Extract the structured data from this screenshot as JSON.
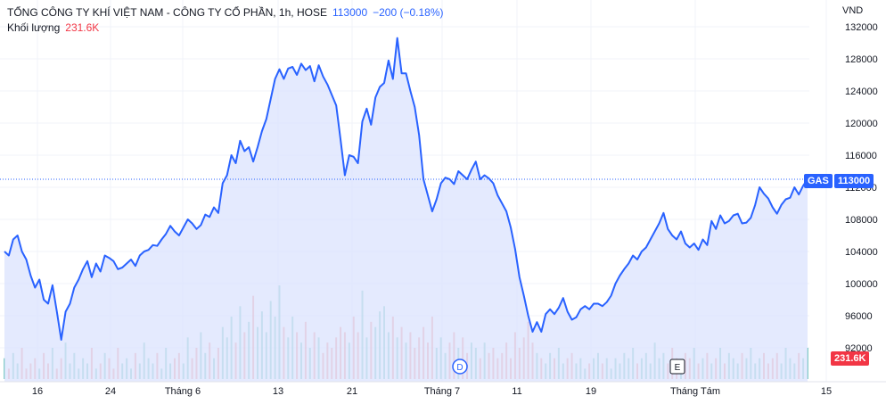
{
  "legend": {
    "symbol_title": "TỔNG CÔNG TY KHÍ VIỆT NAM - CÔNG TY CỔ PHẦN, 1h, HOSE",
    "last_price": "113000",
    "change": "−200 (−0.18%)",
    "volume_label": "Khối lượng",
    "volume_value": "231.6K"
  },
  "axis": {
    "currency": "VND"
  },
  "price_badge": {
    "symbol": "GAS",
    "value": "113000"
  },
  "volume_badge": {
    "value": "231.6K"
  },
  "markers": {
    "dividend": "D",
    "earnings": "E"
  },
  "colors": {
    "line": "#2962ff",
    "area": "#dbe3fd",
    "up_volume": "#26a69a",
    "down_volume": "#ef5350",
    "badge_bg": "#2962ff",
    "vol_badge_bg": "#f23645"
  },
  "chart_data": {
    "type": "area",
    "title": "TỔNG CÔNG TY KHÍ VIỆT NAM - CÔNG TY CỔ PHẦN, 1h, HOSE",
    "ylim": [
      88000,
      133000
    ],
    "y_ticks": [
      "132000",
      "128000",
      "124000",
      "120000",
      "116000",
      "112000",
      "108000",
      "104000",
      "100000",
      "96000",
      "92000"
    ],
    "x_ticks": [
      "16",
      "24",
      "Tháng 6",
      "13",
      "21",
      "Tháng 7",
      "11",
      "19",
      "Tháng Tám",
      "15"
    ],
    "grid": true,
    "price_series": [
      104000,
      103500,
      105500,
      106000,
      104000,
      103000,
      101000,
      99500,
      100500,
      98000,
      97500,
      99800,
      96500,
      93000,
      96500,
      97500,
      99500,
      100500,
      101800,
      102800,
      100800,
      102500,
      101500,
      103500,
      103200,
      102800,
      101800,
      102000,
      102500,
      103000,
      102200,
      103500,
      104000,
      104200,
      104800,
      104700,
      105500,
      106200,
      107200,
      106500,
      106000,
      107000,
      108000,
      107500,
      106800,
      107300,
      108600,
      108300,
      109500,
      108800,
      112500,
      113500,
      116000,
      115000,
      117800,
      116500,
      117000,
      115200,
      117000,
      119000,
      120500,
      123000,
      125500,
      126700,
      125500,
      126800,
      127000,
      126000,
      127400,
      126600,
      127100,
      125200,
      127200,
      125800,
      124800,
      123500,
      122200,
      118000,
      113500,
      116000,
      115800,
      115000,
      120200,
      121800,
      119800,
      123200,
      124500,
      125000,
      127800,
      125500,
      130600,
      126200,
      126200,
      124000,
      122000,
      118500,
      113000,
      111000,
      109000,
      110500,
      112500,
      113200,
      113000,
      112400,
      114000,
      113500,
      113000,
      114200,
      115200,
      113000,
      113500,
      113100,
      112500,
      111000,
      110000,
      109000,
      107000,
      104300,
      100800,
      98500,
      96000,
      94000,
      95200,
      94000,
      96200,
      96800,
      96200,
      97000,
      98200,
      96500,
      95500,
      95800,
      96800,
      97200,
      96800,
      97500,
      97500,
      97200,
      97700,
      98500,
      100000,
      101000,
      101800,
      102500,
      103500,
      103000,
      104000,
      104500,
      105500,
      106500,
      107500,
      108800,
      106800,
      106000,
      105500,
      106500,
      105000,
      104500,
      105000,
      104200,
      105500,
      104800,
      107800,
      106800,
      108500,
      107500,
      107800,
      108500,
      108700,
      107500,
      107600,
      108200,
      109800,
      112000,
      111200,
      110600,
      109500,
      108700,
      109800,
      110500,
      110700,
      112000,
      111100,
      112200,
      113000
    ],
    "volume_series": [
      4,
      2,
      5,
      3,
      6,
      2,
      3,
      4,
      2,
      5,
      3,
      6,
      2,
      4,
      7,
      3,
      5,
      2,
      4,
      3,
      6,
      2,
      3,
      5,
      4,
      2,
      6,
      3,
      4,
      2,
      5,
      3,
      7,
      4,
      3,
      5,
      2,
      6,
      3,
      4,
      5,
      3,
      8,
      4,
      6,
      9,
      5,
      7,
      4,
      6,
      10,
      8,
      12,
      7,
      14,
      9,
      11,
      16,
      10,
      13,
      9,
      15,
      12,
      18,
      10,
      8,
      12,
      9,
      7,
      11,
      6,
      9,
      8,
      5,
      7,
      6,
      8,
      10,
      9,
      7,
      12,
      9,
      17,
      8,
      11,
      10,
      13,
      14,
      9,
      12,
      8,
      10,
      7,
      9,
      6,
      8,
      10,
      7,
      12,
      6,
      8,
      5,
      7,
      9,
      6,
      8,
      5,
      7,
      6,
      4,
      7,
      5,
      6,
      4,
      5,
      7,
      4,
      9,
      6,
      8,
      11,
      7,
      5,
      4,
      3,
      5,
      4,
      6,
      3,
      4,
      5,
      3,
      4,
      2,
      3,
      4,
      5,
      3,
      4,
      2,
      4,
      3,
      5,
      4,
      6,
      3,
      4,
      5,
      3,
      7,
      4,
      5,
      3,
      6,
      4,
      3,
      5,
      4,
      6,
      3,
      4,
      5,
      3,
      4,
      6,
      3,
      5,
      4,
      3,
      5,
      4,
      6,
      3,
      4,
      5,
      3,
      4,
      5,
      3,
      6,
      4,
      3,
      5,
      4,
      6
    ]
  }
}
